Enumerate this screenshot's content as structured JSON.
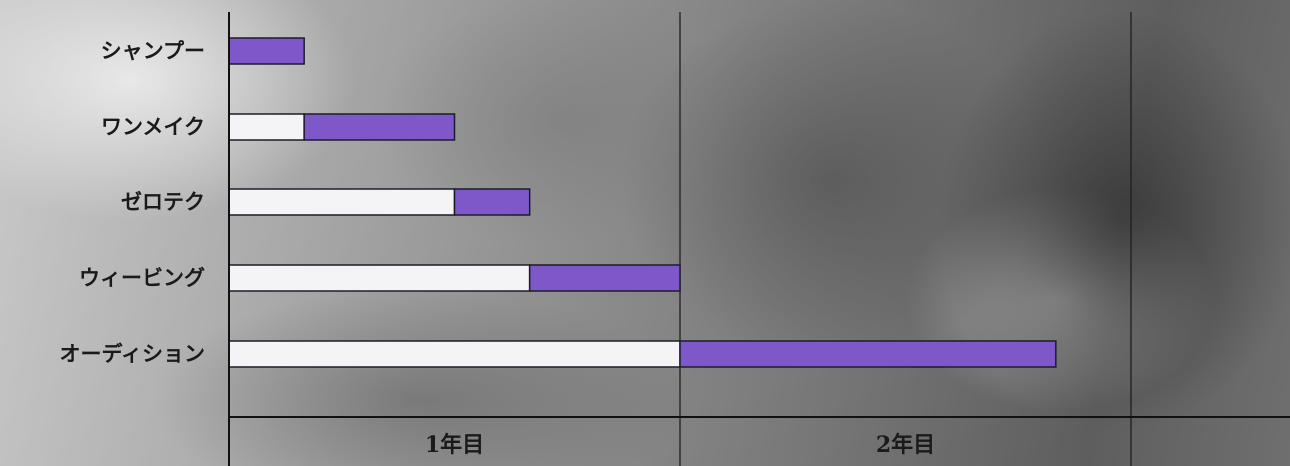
{
  "chart_data": {
    "type": "bar",
    "orientation": "horizontal-stacked",
    "categories": [
      "シャンプー",
      "ワンメイク",
      "ゼロテク",
      "ウィービング",
      "オーディション"
    ],
    "series": [
      {
        "values": [
          0,
          2,
          6,
          8,
          12
        ]
      },
      {
        "values": [
          2,
          4,
          2,
          4,
          10
        ]
      }
    ],
    "x_ticks": [
      "1年目",
      "2年目"
    ],
    "x_unit": "months",
    "xlim": [
      0,
      26
    ],
    "grid": true,
    "colors": {
      "highlight": "#7e57c9",
      "base": "#f4f4f6",
      "outline": "#1c1c2a",
      "grid": "#1e1e1e"
    }
  }
}
